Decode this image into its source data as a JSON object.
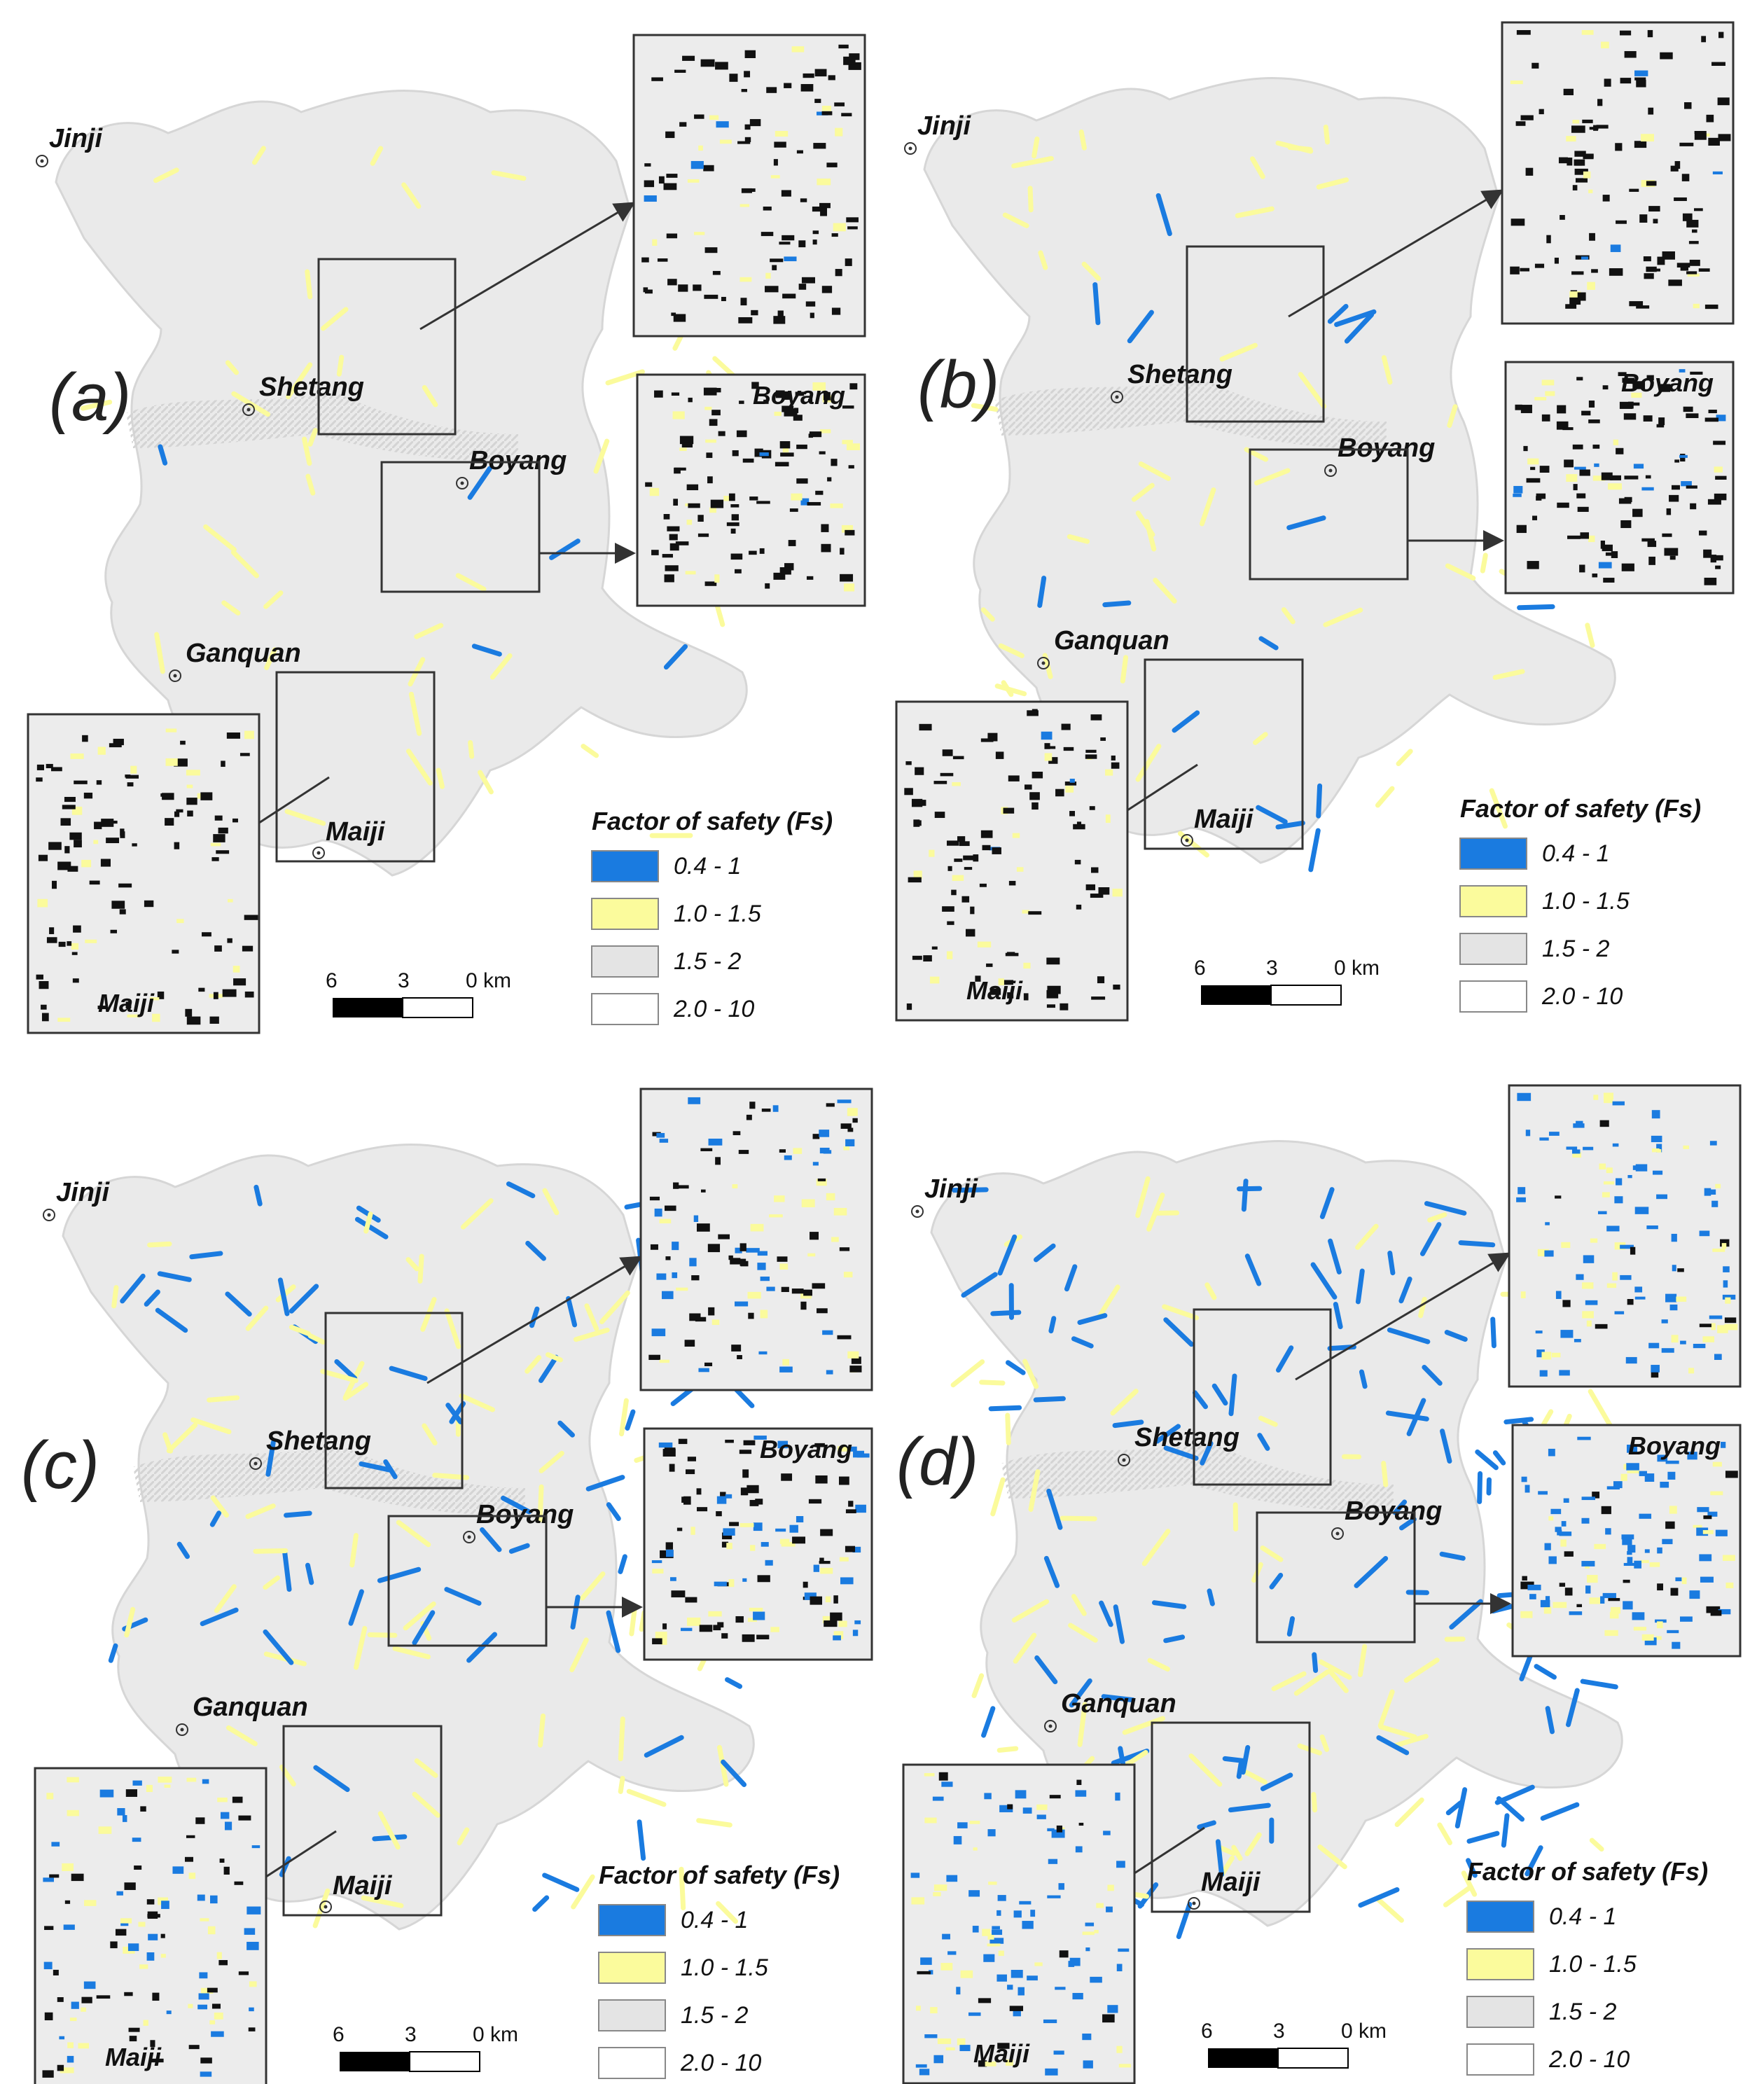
{
  "colors": {
    "low_fs": "#1a7be0",
    "mid_fs": "#fbfb9c",
    "gray_fs": "#e4e4e4",
    "white_fs": "#ffffff",
    "terrain": "#eaeaea",
    "frame": "#333333"
  },
  "panels": [
    {
      "letter": "(a)",
      "towns": {
        "jinji": "Jinji",
        "shetang": "Shetang",
        "boyang": "Boyang",
        "ganquan": "Ganquan",
        "maiji": "Maiji"
      },
      "inset_labels": {
        "boyang": "Boyang",
        "maiji": "Maiji"
      },
      "legend_title": "Factor of  safety (Fs)",
      "blue_level": 0.03,
      "yellow_level": 0.35
    },
    {
      "letter": "(b)",
      "towns": {
        "jinji": "Jinji",
        "shetang": "Shetang",
        "boyang": "Boyang",
        "ganquan": "Ganquan",
        "maiji": "Maiji"
      },
      "inset_labels": {
        "boyang": "Boyang",
        "maiji": "Maiji"
      },
      "legend_title": "Factor of  safety (Fs)",
      "blue_level": 0.08,
      "yellow_level": 0.4
    },
    {
      "letter": "(c)",
      "towns": {
        "jinji": "Jinji",
        "shetang": "Shetang",
        "boyang": "Boyang",
        "ganquan": "Ganquan",
        "maiji": "Maiji"
      },
      "inset_labels": {
        "boyang": "Boyang",
        "maiji": "Maiji"
      },
      "legend_title": "Factor of  safety (Fs)",
      "blue_level": 0.45,
      "yellow_level": 0.6
    },
    {
      "letter": "(d)",
      "towns": {
        "jinji": "Jinji",
        "shetang": "Shetang",
        "boyang": "Boyang",
        "ganquan": "Ganquan",
        "maiji": "Maiji"
      },
      "inset_labels": {
        "boyang": "Boyang",
        "maiji": "Maiji"
      },
      "legend_title": "Factor of safety (Fs)",
      "blue_level": 0.85,
      "yellow_level": 0.65
    }
  ],
  "legend_items": [
    "0.4 - 1",
    "1.0 - 1.5",
    "1.5 - 2",
    "2.0 - 10"
  ],
  "scale_bar": {
    "labels": [
      "6",
      "3",
      "0 km"
    ]
  }
}
